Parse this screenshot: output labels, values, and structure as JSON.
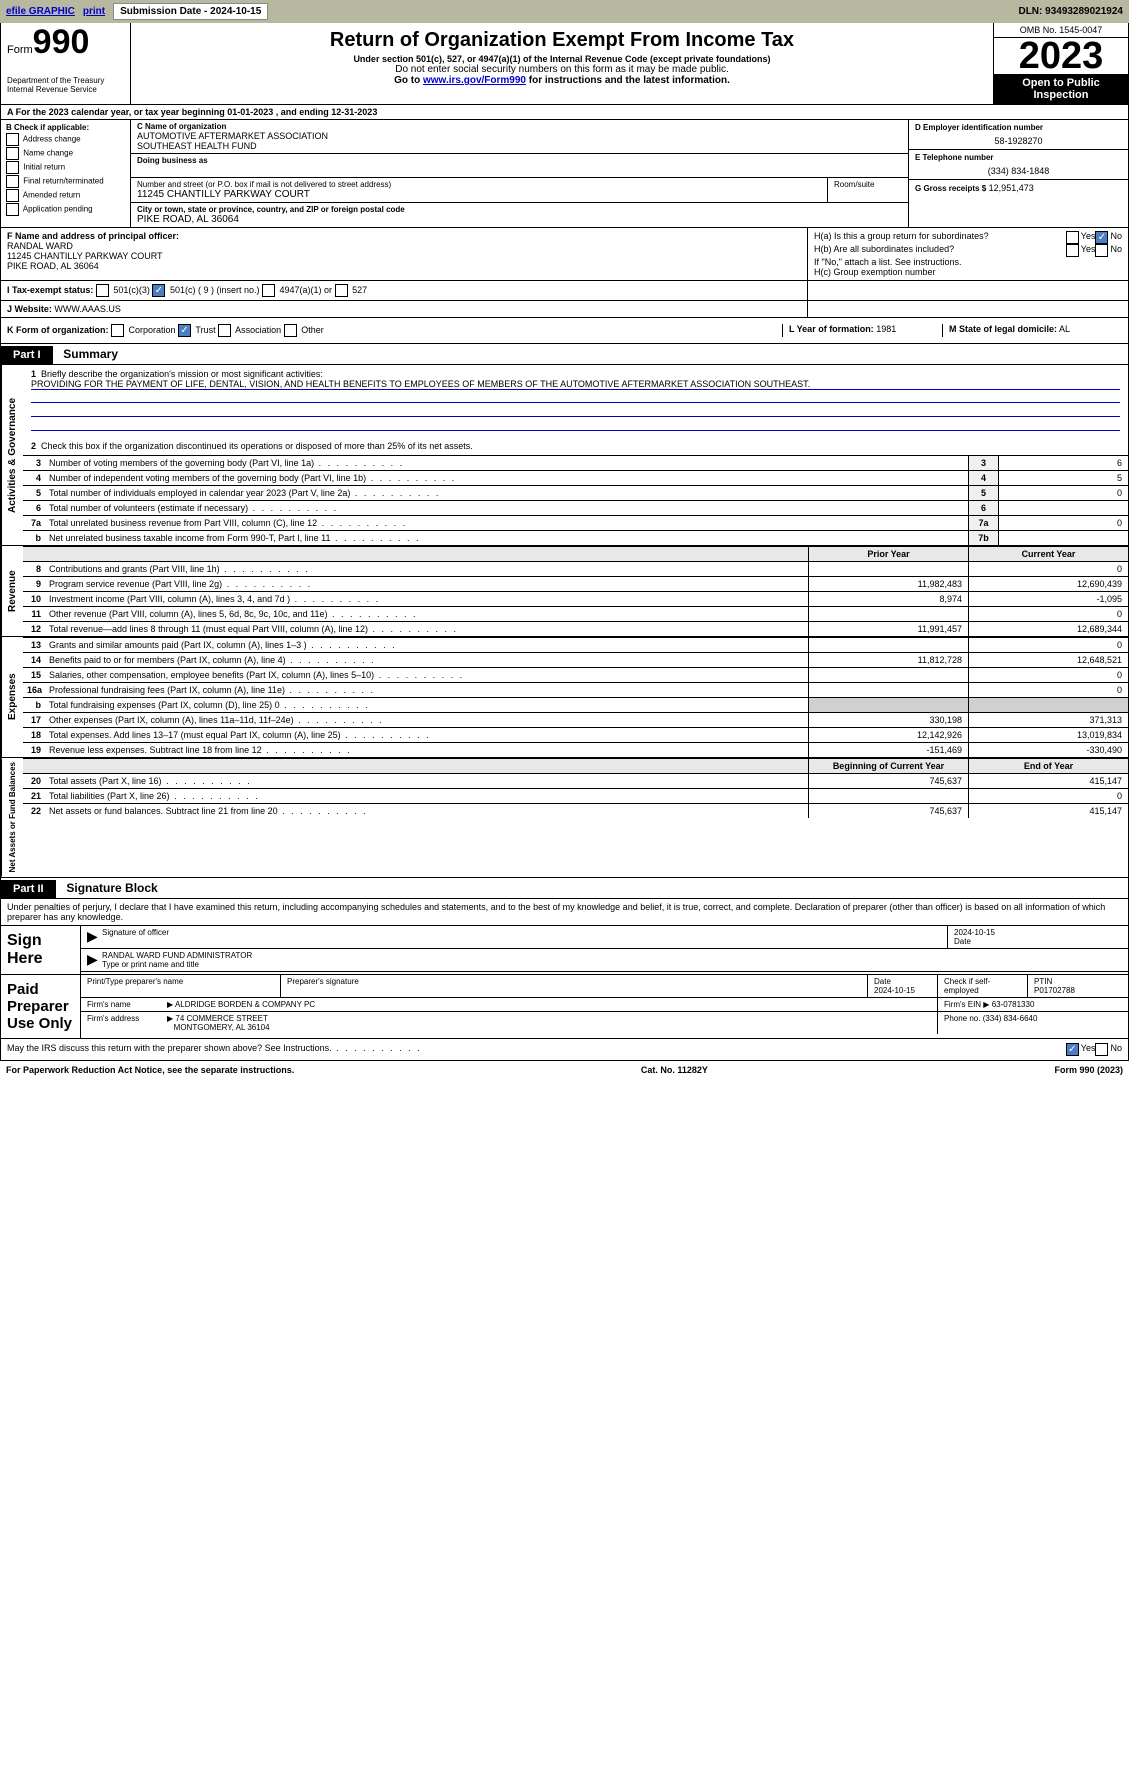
{
  "top_bar": {
    "efile": "efile GRAPHIC",
    "print": "print",
    "sub_date_label": "Submission Date - 2024-10-15",
    "dln": "DLN: 93493289021924"
  },
  "header": {
    "form_label": "Form",
    "form_num": "990",
    "dept": "Department of the Treasury",
    "irs": "Internal Revenue Service",
    "title": "Return of Organization Exempt From Income Tax",
    "sub1": "Under section 501(c), 527, or 4947(a)(1) of the Internal Revenue Code (except private foundations)",
    "sub2": "Do not enter social security numbers on this form as it may be made public.",
    "sub3_pre": "Go to ",
    "sub3_link": "www.irs.gov/Form990",
    "sub3_post": " for instructions and the latest information.",
    "omb": "OMB No. 1545-0047",
    "year": "2023",
    "open_pub": "Open to Public Inspection"
  },
  "row_a": "A For the 2023 calendar year, or tax year beginning 01-01-2023   , and ending 12-31-2023",
  "col_b": {
    "title": "B Check if applicable:",
    "items": [
      "Address change",
      "Name change",
      "Initial return",
      "Final return/terminated",
      "Amended return",
      "Application pending"
    ]
  },
  "name_boxes": {
    "c_lab": "C Name of organization",
    "c_val1": "AUTOMOTIVE AFTERMARKET ASSOCIATION",
    "c_val2": "SOUTHEAST HEALTH FUND",
    "dba_lab": "Doing business as",
    "addr_lab": "Number and street (or P.O. box if mail is not delivered to street address)",
    "addr_val": "11245 CHANTILLY PARKWAY COURT",
    "room_lab": "Room/suite",
    "city_lab": "City or town, state or province, country, and ZIP or foreign postal code",
    "city_val": "PIKE ROAD, AL  36064"
  },
  "right_info": {
    "d_lab": "D Employer identification number",
    "d_val": "58-1928270",
    "e_lab": "E Telephone number",
    "e_val": "(334) 834-1848",
    "g_lab": "G Gross receipts $",
    "g_val": "12,951,473"
  },
  "section_f": {
    "f_lab": "F Name and address of principal officer:",
    "f_name": "RANDAL WARD",
    "f_addr1": "11245 CHANTILLY PARKWAY COURT",
    "f_addr2": "PIKE ROAD, AL  36064"
  },
  "section_h": {
    "ha": "H(a)  Is this a group return for subordinates?",
    "hb": "H(b)  Are all subordinates included?",
    "hb_note": "If \"No,\" attach a list. See instructions.",
    "hc": "H(c)  Group exemption number",
    "yes": "Yes",
    "no": "No"
  },
  "section_i": {
    "i_lab": "I   Tax-exempt status:",
    "i_501c3": "501(c)(3)",
    "i_501c": "501(c) ( 9 ) (insert no.)",
    "i_4947": "4947(a)(1) or",
    "i_527": "527"
  },
  "section_j": {
    "j_lab": "J   Website:",
    "j_val": "WWW.AAAS.US"
  },
  "section_k": {
    "k_lab": "K Form of organization:",
    "k_corp": "Corporation",
    "k_trust": "Trust",
    "k_assoc": "Association",
    "k_other": "Other",
    "l_lab": "L Year of formation:",
    "l_val": "1981",
    "m_lab": "M State of legal domicile:",
    "m_val": "AL"
  },
  "part1": {
    "hdr": "Part I",
    "title": "Summary",
    "side_ag": "Activities & Governance",
    "side_rev": "Revenue",
    "side_exp": "Expenses",
    "side_na": "Net Assets or Fund Balances",
    "line1_lab": "Briefly describe the organization's mission or most significant activities:",
    "line1_val": "PROVIDING FOR THE PAYMENT OF LIFE, DENTAL, VISION, AND HEALTH BENEFITS TO EMPLOYEES OF MEMBERS OF THE AUTOMOTIVE AFTERMARKET ASSOCIATION SOUTHEAST.",
    "line2": "Check this box      if the organization discontinued its operations or disposed of more than 25% of its net assets.",
    "prior_hdr": "Prior Year",
    "curr_hdr": "Current Year",
    "boy_hdr": "Beginning of Current Year",
    "eoy_hdr": "End of Year"
  },
  "gov_rows": [
    {
      "n": "3",
      "lab": "Number of voting members of the governing body (Part VI, line 1a)",
      "box": "3",
      "val": "6"
    },
    {
      "n": "4",
      "lab": "Number of independent voting members of the governing body (Part VI, line 1b)",
      "box": "4",
      "val": "5"
    },
    {
      "n": "5",
      "lab": "Total number of individuals employed in calendar year 2023 (Part V, line 2a)",
      "box": "5",
      "val": "0"
    },
    {
      "n": "6",
      "lab": "Total number of volunteers (estimate if necessary)",
      "box": "6",
      "val": ""
    },
    {
      "n": "7a",
      "lab": "Total unrelated business revenue from Part VIII, column (C), line 12",
      "box": "7a",
      "val": "0"
    },
    {
      "n": "b",
      "lab": "Net unrelated business taxable income from Form 990-T, Part I, line 11",
      "box": "7b",
      "val": ""
    }
  ],
  "rev_rows": [
    {
      "n": "8",
      "lab": "Contributions and grants (Part VIII, line 1h)",
      "p": "",
      "c": "0"
    },
    {
      "n": "9",
      "lab": "Program service revenue (Part VIII, line 2g)",
      "p": "11,982,483",
      "c": "12,690,439"
    },
    {
      "n": "10",
      "lab": "Investment income (Part VIII, column (A), lines 3, 4, and 7d )",
      "p": "8,974",
      "c": "-1,095"
    },
    {
      "n": "11",
      "lab": "Other revenue (Part VIII, column (A), lines 5, 6d, 8c, 9c, 10c, and 11e)",
      "p": "",
      "c": "0"
    },
    {
      "n": "12",
      "lab": "Total revenue—add lines 8 through 11 (must equal Part VIII, column (A), line 12)",
      "p": "11,991,457",
      "c": "12,689,344"
    }
  ],
  "exp_rows": [
    {
      "n": "13",
      "lab": "Grants and similar amounts paid (Part IX, column (A), lines 1–3 )",
      "p": "",
      "c": "0"
    },
    {
      "n": "14",
      "lab": "Benefits paid to or for members (Part IX, column (A), line 4)",
      "p": "11,812,728",
      "c": "12,648,521"
    },
    {
      "n": "15",
      "lab": "Salaries, other compensation, employee benefits (Part IX, column (A), lines 5–10)",
      "p": "",
      "c": "0"
    },
    {
      "n": "16a",
      "lab": "Professional fundraising fees (Part IX, column (A), line 11e)",
      "p": "",
      "c": "0"
    },
    {
      "n": "b",
      "lab": "Total fundraising expenses (Part IX, column (D), line 25) 0",
      "p": "grey",
      "c": "grey"
    },
    {
      "n": "17",
      "lab": "Other expenses (Part IX, column (A), lines 11a–11d, 11f–24e)",
      "p": "330,198",
      "c": "371,313"
    },
    {
      "n": "18",
      "lab": "Total expenses. Add lines 13–17 (must equal Part IX, column (A), line 25)",
      "p": "12,142,926",
      "c": "13,019,834"
    },
    {
      "n": "19",
      "lab": "Revenue less expenses. Subtract line 18 from line 12",
      "p": "-151,469",
      "c": "-330,490"
    }
  ],
  "na_rows": [
    {
      "n": "20",
      "lab": "Total assets (Part X, line 16)",
      "p": "745,637",
      "c": "415,147"
    },
    {
      "n": "21",
      "lab": "Total liabilities (Part X, line 26)",
      "p": "",
      "c": "0"
    },
    {
      "n": "22",
      "lab": "Net assets or fund balances. Subtract line 21 from line 20",
      "p": "745,637",
      "c": "415,147"
    }
  ],
  "part2": {
    "hdr": "Part II",
    "title": "Signature Block",
    "declare": "Under penalties of perjury, I declare that I have examined this return, including accompanying schedules and statements, and to the best of my knowledge and belief, it is true, correct, and complete. Declaration of preparer (other than officer) is based on all information of which preparer has any knowledge."
  },
  "sign_here": {
    "title": "Sign Here",
    "sig_lab": "Signature of officer",
    "date": "2024-10-15",
    "name": "RANDAL WARD  FUND ADMINISTRATOR",
    "type_lab": "Type or print name and title"
  },
  "paid_prep": {
    "title": "Paid Preparer Use Only",
    "print_lab": "Print/Type preparer's name",
    "sig_lab": "Preparer's signature",
    "date_lab": "Date",
    "date_val": "2024-10-15",
    "check_lab": "Check       if self-employed",
    "ptin_lab": "PTIN",
    "ptin_val": "P01702788",
    "firm_name_lab": "Firm's name",
    "firm_name": "ALDRIDGE BORDEN & COMPANY PC",
    "firm_ein_lab": "Firm's EIN",
    "firm_ein": "63-0781330",
    "firm_addr_lab": "Firm's address",
    "firm_addr1": "74 COMMERCE STREET",
    "firm_addr2": "MONTGOMERY, AL  36104",
    "phone_lab": "Phone no.",
    "phone": "(334) 834-6640"
  },
  "discuss": "May the IRS discuss this return with the preparer shown above? See Instructions.",
  "footer": {
    "left": "For Paperwork Reduction Act Notice, see the separate instructions.",
    "mid": "Cat. No. 11282Y",
    "right": "Form 990 (2023)"
  }
}
